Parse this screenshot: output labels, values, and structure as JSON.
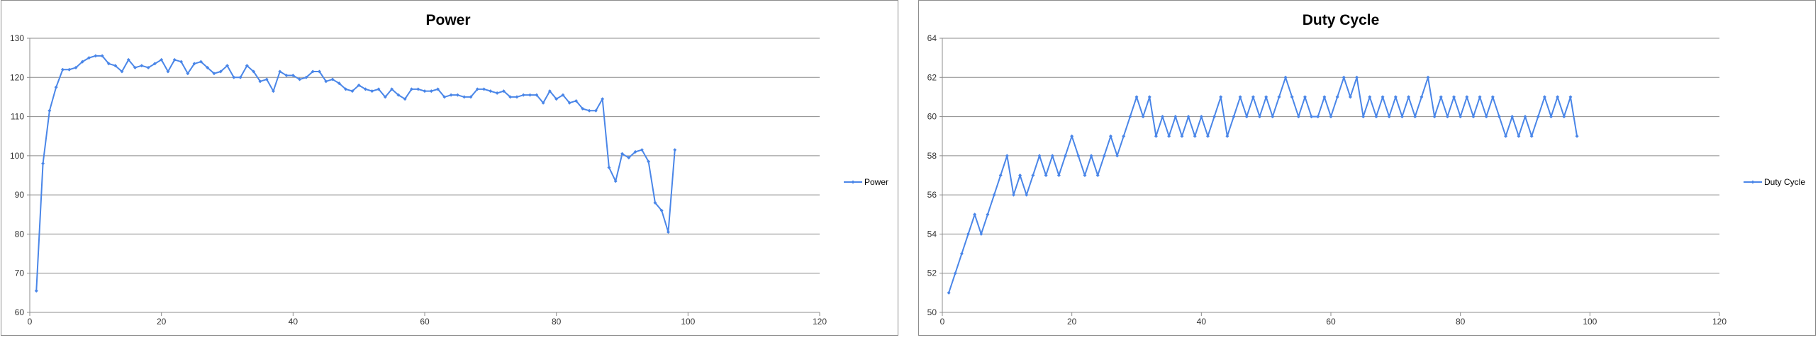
{
  "colors": {
    "series": "#4a86e8",
    "grid": "#8c8c8c",
    "border": "#8c8c8c"
  },
  "chart_data": [
    {
      "type": "line",
      "title": "Power",
      "xlabel": "",
      "ylabel": "",
      "xlim": [
        0,
        120
      ],
      "ylim": [
        60,
        130
      ],
      "xticks": [
        0,
        20,
        40,
        60,
        80,
        100,
        120
      ],
      "yticks": [
        60,
        70,
        80,
        90,
        100,
        110,
        120,
        130
      ],
      "grid": true,
      "legend_position": "right",
      "series": [
        {
          "name": "Power",
          "x": [
            1,
            2,
            3,
            4,
            5,
            6,
            7,
            8,
            9,
            10,
            11,
            12,
            13,
            14,
            15,
            16,
            17,
            18,
            19,
            20,
            21,
            22,
            23,
            24,
            25,
            26,
            27,
            28,
            29,
            30,
            31,
            32,
            33,
            34,
            35,
            36,
            37,
            38,
            39,
            40,
            41,
            42,
            43,
            44,
            45,
            46,
            47,
            48,
            49,
            50,
            51,
            52,
            53,
            54,
            55,
            56,
            57,
            58,
            59,
            60,
            61,
            62,
            63,
            64,
            65,
            66,
            67,
            68,
            69,
            70,
            71,
            72,
            73,
            74,
            75,
            76,
            77,
            78,
            79,
            80,
            81,
            82,
            83,
            84,
            85,
            86,
            87,
            88,
            89,
            90,
            91,
            92,
            93,
            94,
            95,
            96,
            97,
            98
          ],
          "y": [
            65.5,
            98,
            111.5,
            117.5,
            122,
            122,
            122.5,
            124,
            125,
            125.5,
            125.5,
            123.5,
            123,
            121.5,
            124.5,
            122.5,
            123,
            122.5,
            123.5,
            124.5,
            121.5,
            124.5,
            124,
            121,
            123.5,
            124,
            122.5,
            121,
            121.5,
            123,
            120,
            120,
            123,
            121.5,
            119,
            119.5,
            116.5,
            121.5,
            120.5,
            120.5,
            119.5,
            120,
            121.5,
            121.5,
            119,
            119.5,
            118.5,
            117,
            116.5,
            118,
            117,
            116.5,
            117,
            115,
            117,
            115.5,
            114.5,
            117,
            117,
            116.5,
            116.5,
            117,
            115,
            115.5,
            115.5,
            115,
            115,
            117,
            117,
            116.5,
            116,
            116.5,
            115,
            115,
            115.5,
            115.5,
            115.5,
            113.5,
            116.5,
            114.5,
            115.5,
            113.5,
            114,
            112,
            111.5,
            111.5,
            114.5,
            97,
            93.5,
            100.5,
            99.5,
            101,
            101.5,
            98.5,
            88,
            86,
            80.5,
            101.5
          ]
        }
      ]
    },
    {
      "type": "line",
      "title": "Duty Cycle",
      "xlabel": "",
      "ylabel": "",
      "xlim": [
        0,
        120
      ],
      "ylim": [
        50,
        64
      ],
      "xticks": [
        0,
        20,
        40,
        60,
        80,
        100,
        120
      ],
      "yticks": [
        50,
        52,
        54,
        56,
        58,
        60,
        62,
        64
      ],
      "grid": true,
      "legend_position": "right",
      "series": [
        {
          "name": "Duty Cycle",
          "x": [
            1,
            2,
            3,
            4,
            5,
            6,
            7,
            8,
            9,
            10,
            11,
            12,
            13,
            14,
            15,
            16,
            17,
            18,
            19,
            20,
            21,
            22,
            23,
            24,
            25,
            26,
            27,
            28,
            29,
            30,
            31,
            32,
            33,
            34,
            35,
            36,
            37,
            38,
            39,
            40,
            41,
            42,
            43,
            44,
            45,
            46,
            47,
            48,
            49,
            50,
            51,
            52,
            53,
            54,
            55,
            56,
            57,
            58,
            59,
            60,
            61,
            62,
            63,
            64,
            65,
            66,
            67,
            68,
            69,
            70,
            71,
            72,
            73,
            74,
            75,
            76,
            77,
            78,
            79,
            80,
            81,
            82,
            83,
            84,
            85,
            86,
            87,
            88,
            89,
            90,
            91,
            92,
            93,
            94,
            95,
            96,
            97,
            98
          ],
          "y": [
            51,
            52,
            53,
            54,
            55,
            54,
            55,
            56,
            57,
            58,
            56,
            57,
            56,
            57,
            58,
            57,
            58,
            57,
            58,
            59,
            58,
            57,
            58,
            57,
            58,
            59,
            58,
            59,
            60,
            61,
            60,
            61,
            59,
            60,
            59,
            60,
            59,
            60,
            59,
            60,
            59,
            60,
            61,
            59,
            60,
            61,
            60,
            61,
            60,
            61,
            60,
            61,
            62,
            61,
            60,
            61,
            60,
            60,
            61,
            60,
            61,
            62,
            61,
            62,
            60,
            61,
            60,
            61,
            60,
            61,
            60,
            61,
            60,
            61,
            62,
            60,
            61,
            60,
            61,
            60,
            61,
            60,
            61,
            60,
            61,
            60,
            59,
            60,
            59,
            60,
            59,
            60,
            61,
            60,
            61,
            60,
            61,
            59
          ]
        }
      ]
    }
  ]
}
